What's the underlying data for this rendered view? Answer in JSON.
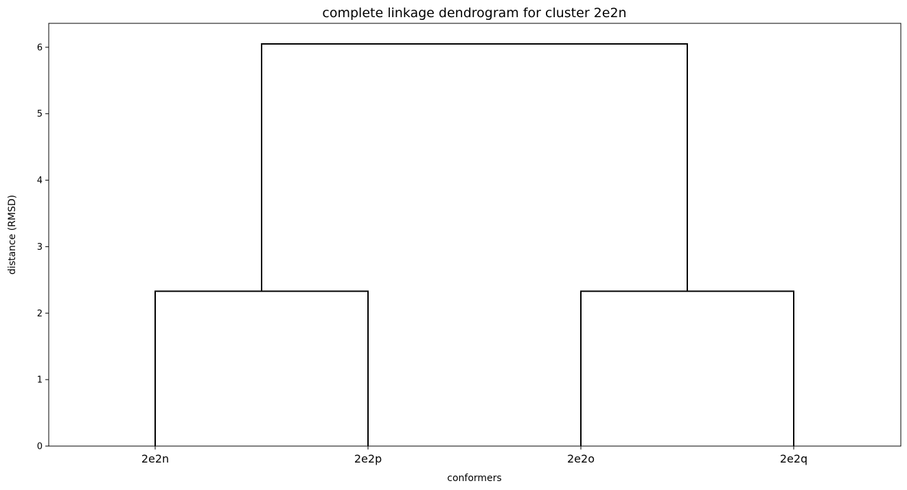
{
  "chart_data": {
    "type": "dendrogram",
    "title": "complete linkage dendrogram for cluster 2e2n",
    "xlabel": "conformers",
    "ylabel": "distance (RMSD)",
    "leaves": [
      "2e2n",
      "2e2p",
      "2e2o",
      "2e2q"
    ],
    "ylim": [
      0,
      6.36
    ],
    "yticks": [
      0,
      1,
      2,
      3,
      4,
      5,
      6
    ],
    "merges": [
      {
        "left": "2e2n",
        "right": "2e2p",
        "height": 2.33
      },
      {
        "left": "2e2o",
        "right": "2e2q",
        "height": 2.33
      },
      {
        "left": "2e2n+2e2p",
        "right": "2e2o+2e2q",
        "height": 6.05
      }
    ],
    "links": [
      {
        "x1": 0,
        "x2": 1,
        "y_left_bottom": 0,
        "y_right_bottom": 0,
        "y_top": 2.33
      },
      {
        "x1": 2,
        "x2": 3,
        "y_left_bottom": 0,
        "y_right_bottom": 0,
        "y_top": 2.33
      },
      {
        "x1": 0.5,
        "x2": 2.5,
        "y_left_bottom": 2.33,
        "y_right_bottom": 2.33,
        "y_top": 6.05
      }
    ],
    "line_color": "#000000",
    "grid": false,
    "legend": "none"
  }
}
